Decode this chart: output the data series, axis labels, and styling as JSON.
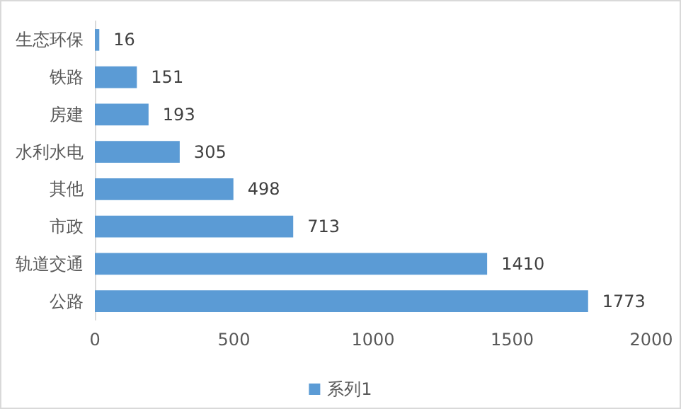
{
  "chart_data": {
    "type": "bar",
    "orientation": "horizontal",
    "categories": [
      "生态环保",
      "铁路",
      "房建",
      "水利水电",
      "其他",
      "市政",
      "轨道交通",
      "公路"
    ],
    "series": [
      {
        "name": "系列1",
        "color": "#5b9bd5",
        "values": [
          16,
          151,
          193,
          305,
          498,
          713,
          1410,
          1773
        ]
      }
    ],
    "xlim": [
      0,
      2000
    ],
    "xticks": [
      0,
      500,
      1000,
      1500,
      2000
    ],
    "grid": false,
    "legend": "bottom",
    "data_labels": true
  }
}
